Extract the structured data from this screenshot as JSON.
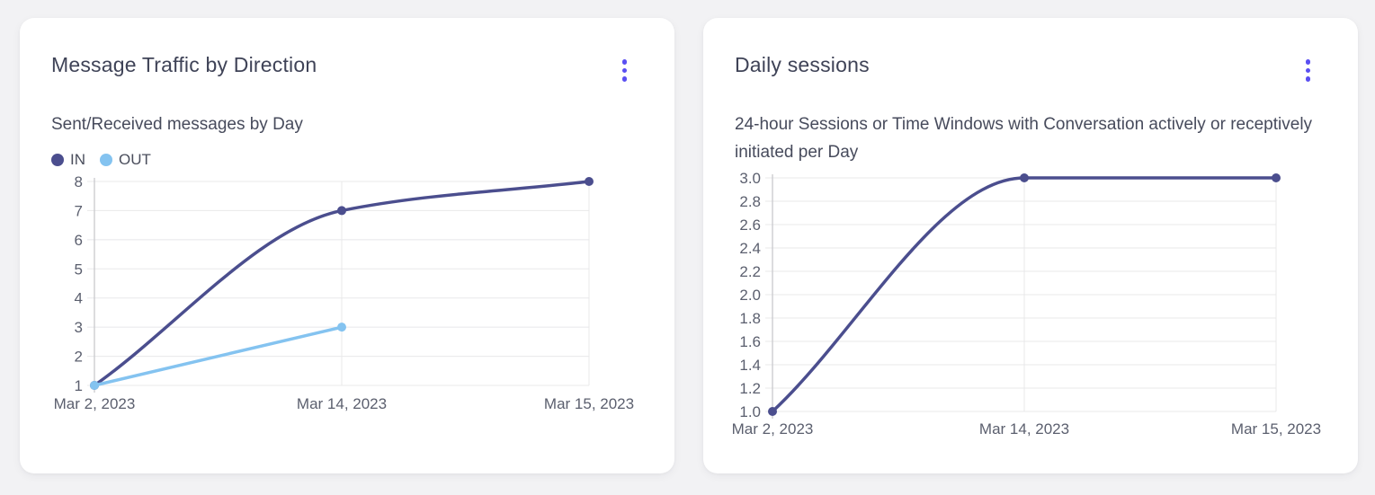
{
  "colors": {
    "accent_menu": "#5a4ff2",
    "series_in": "#4b4e8e",
    "series_out": "#84c3f0",
    "grid": "#e8e8ea",
    "axis": "#c9cacd",
    "tick_text": "#5b5f6e",
    "title_text": "#3f4357",
    "card_bg": "#ffffff",
    "page_bg": "#f2f2f4"
  },
  "cards": [
    {
      "title": "Message Traffic by Direction",
      "subtitle": "Sent/Received messages by Day",
      "menu_icon": "kebab-menu-icon"
    },
    {
      "title": "Daily sessions",
      "subtitle": "24-hour Sessions or Time Windows with Conversation actively or receptively initiated per Day",
      "menu_icon": "kebab-menu-icon"
    }
  ],
  "chart_data": [
    {
      "type": "line",
      "title": "Message Traffic by Direction",
      "subtitle": "Sent/Received messages by Day",
      "categories": [
        "Mar 2, 2023",
        "Mar 14, 2023",
        "Mar 15, 2023"
      ],
      "series": [
        {
          "name": "IN",
          "color": "#4b4e8e",
          "values": [
            1,
            7,
            8
          ]
        },
        {
          "name": "OUT",
          "color": "#84c3f0",
          "values": [
            1,
            3,
            null
          ]
        }
      ],
      "xlabel": "",
      "ylabel": "",
      "ylim": [
        1,
        8
      ],
      "yticks": [
        1,
        2,
        3,
        4,
        5,
        6,
        7,
        8
      ],
      "ytick_labels": [
        "1",
        "2",
        "3",
        "4",
        "5",
        "6",
        "7",
        "8"
      ],
      "grid": true,
      "legend_position": "top-left",
      "curve": "monotone"
    },
    {
      "type": "line",
      "title": "Daily sessions",
      "subtitle": "24-hour Sessions or Time Windows with Conversation actively or receptively initiated per Day",
      "categories": [
        "Mar 2, 2023",
        "Mar 14, 2023",
        "Mar 15, 2023"
      ],
      "series": [
        {
          "name": "Daily sessions",
          "color": "#4b4e8e",
          "values": [
            1.0,
            3.0,
            3.0
          ]
        }
      ],
      "xlabel": "",
      "ylabel": "",
      "ylim": [
        1.0,
        3.0
      ],
      "yticks": [
        1.0,
        1.2,
        1.4,
        1.6,
        1.8,
        2.0,
        2.2,
        2.4,
        2.6,
        2.8,
        3.0
      ],
      "ytick_labels": [
        "1.0",
        "1.2",
        "1.4",
        "1.6",
        "1.8",
        "2.0",
        "2.2",
        "2.4",
        "2.6",
        "2.8",
        "3.0"
      ],
      "grid": true,
      "legend_position": "none",
      "curve": "monotone"
    }
  ]
}
